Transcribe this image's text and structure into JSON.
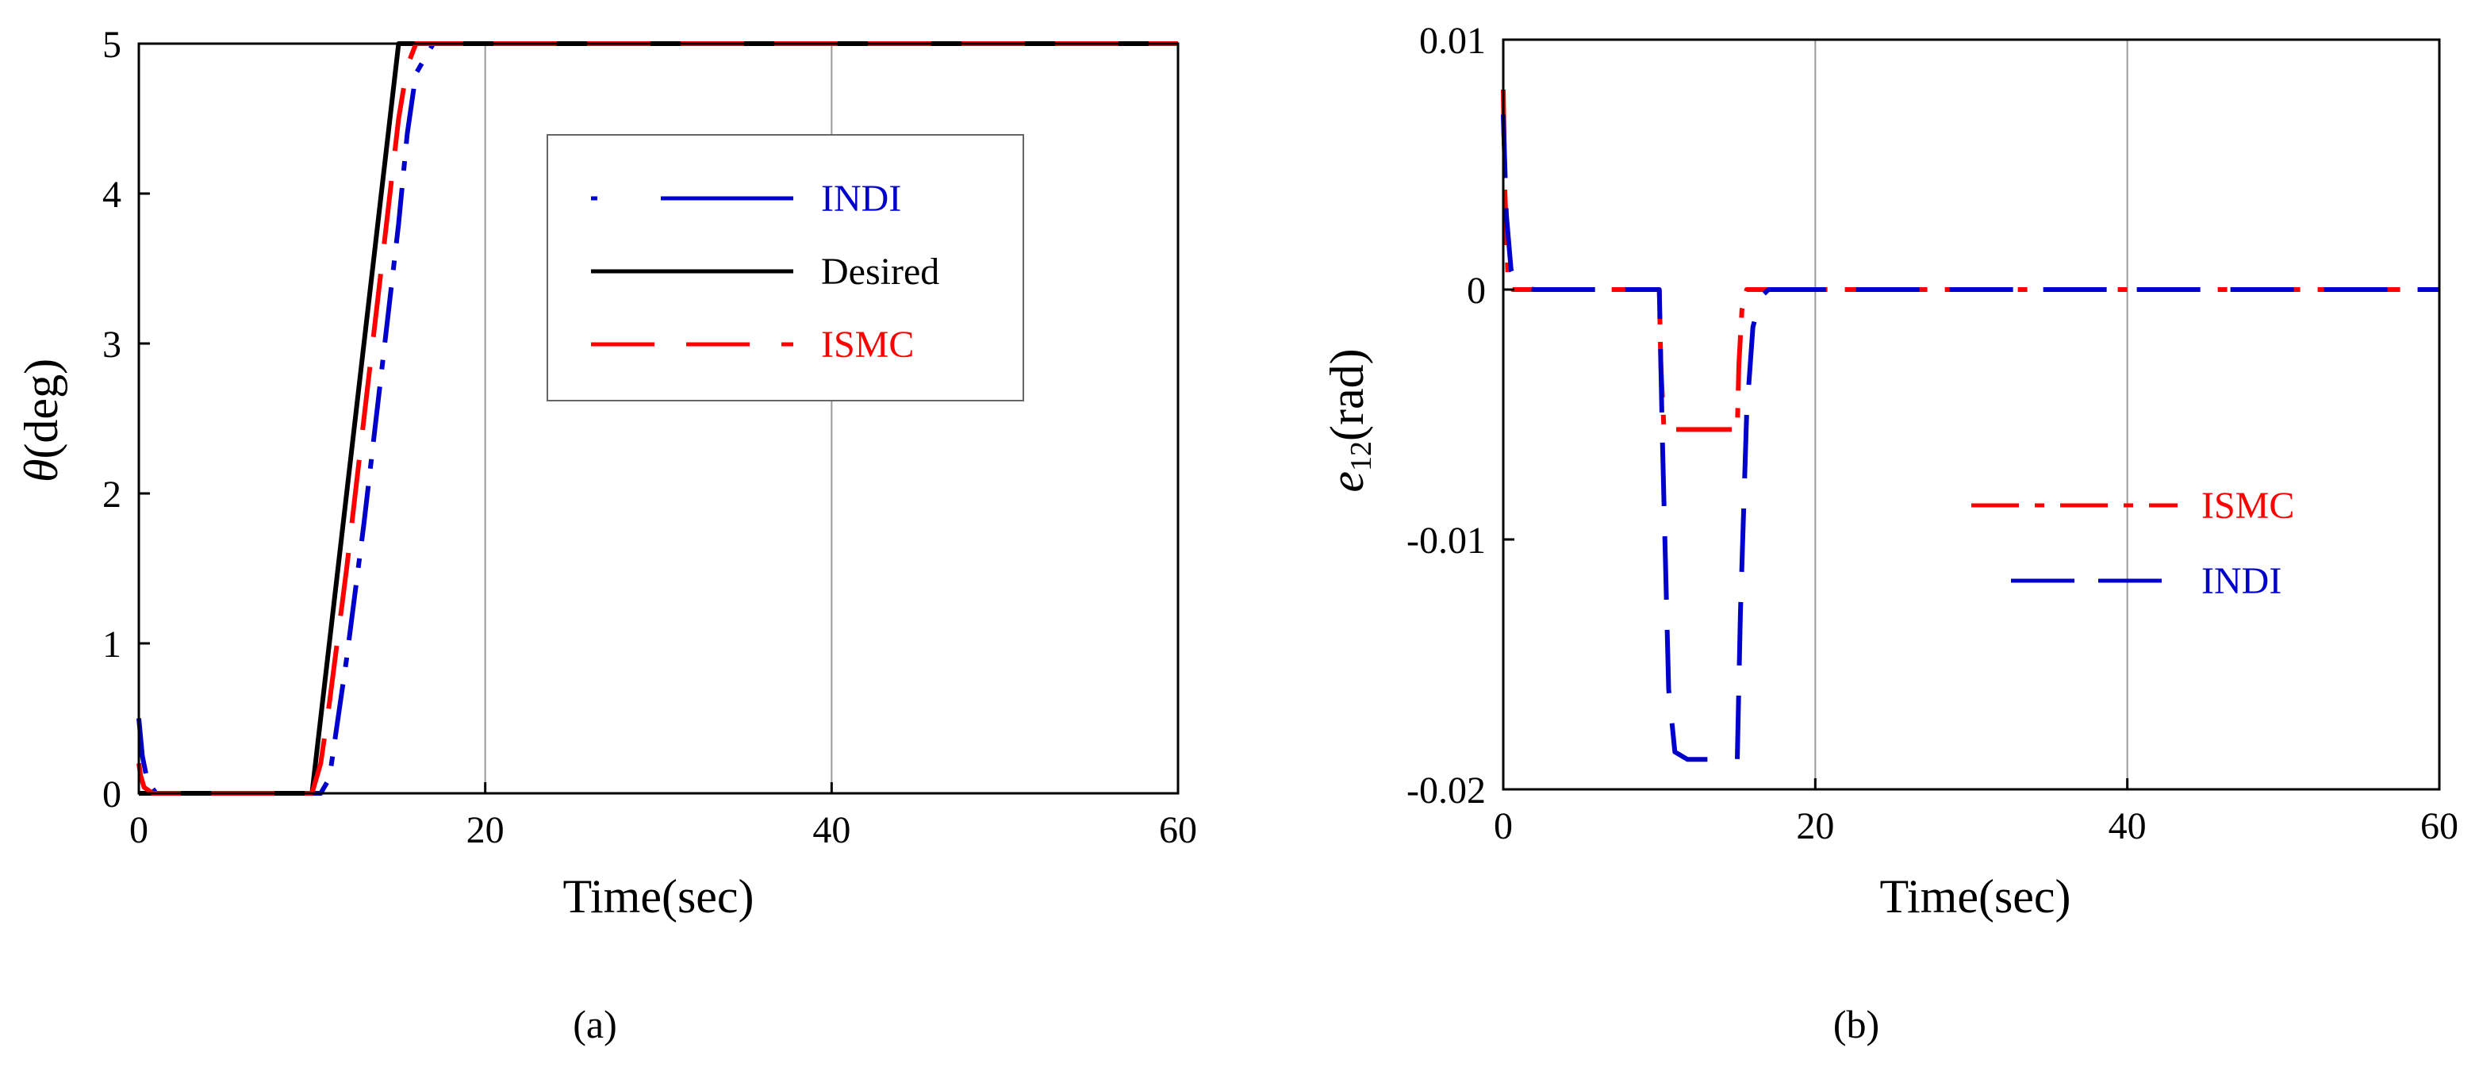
{
  "colors": {
    "indi": "#0000cc",
    "ismc": "#ff0000",
    "desired": "#000000",
    "axis": "#000000"
  },
  "chart_data": [
    {
      "type": "line",
      "caption": "(a)",
      "xlabel": "Time(sec)",
      "ylabel_symbol": "θ",
      "ylabel_rest": "(deg)",
      "xlim": [
        0,
        60
      ],
      "ylim": [
        0,
        5
      ],
      "xticks": [
        0,
        20,
        40,
        60
      ],
      "yticks": [
        0,
        1,
        2,
        3,
        4,
        5
      ],
      "xtick_labels": [
        "0",
        "20",
        "40",
        "60"
      ],
      "ytick_labels": [
        "0",
        "1",
        "2",
        "3",
        "4",
        "5"
      ],
      "grid": "vertical",
      "legend_position": "top-right",
      "series": [
        {
          "name": "INDI",
          "color": "#0000cc",
          "style": "dashdot",
          "x": [
            0,
            0.2,
            0.5,
            1,
            10,
            10.5,
            11,
            12,
            13,
            14,
            15,
            15.5,
            16,
            17,
            20,
            60
          ],
          "y": [
            0.5,
            0.25,
            0.08,
            0,
            0,
            0,
            0.1,
            0.9,
            1.8,
            2.8,
            3.8,
            4.4,
            4.8,
            5,
            5,
            5
          ]
        },
        {
          "name": "Desired",
          "color": "#000000",
          "style": "solid",
          "x": [
            0,
            10,
            15,
            60
          ],
          "y": [
            0,
            0,
            5,
            5
          ]
        },
        {
          "name": "ISMC",
          "color": "#ff0000",
          "style": "dashed",
          "x": [
            0,
            0.1,
            0.3,
            0.8,
            10,
            10.5,
            11,
            12,
            13,
            14,
            15,
            15.5,
            16,
            60
          ],
          "y": [
            0.2,
            0.12,
            0.04,
            0,
            0,
            0.2,
            0.6,
            1.5,
            2.5,
            3.5,
            4.5,
            4.85,
            5,
            5
          ]
        }
      ]
    },
    {
      "type": "line",
      "caption": "(b)",
      "xlabel": "Time(sec)",
      "ylabel_symbol": "e",
      "ylabel_sub": "12",
      "ylabel_rest": "(rad)",
      "xlim": [
        0,
        60
      ],
      "ylim": [
        -0.02,
        0.01
      ],
      "xticks": [
        0,
        20,
        40,
        60
      ],
      "yticks": [
        -0.02,
        -0.01,
        0,
        0.01
      ],
      "xtick_labels": [
        "0",
        "20",
        "40",
        "60"
      ],
      "ytick_labels": [
        "-0.02",
        "-0.01",
        "0",
        "0.01"
      ],
      "grid": "vertical",
      "legend_position": "center-right",
      "series": [
        {
          "name": "ISMC",
          "color": "#ff0000",
          "style": "dashdot",
          "x": [
            0,
            0.1,
            0.3,
            0.6,
            10,
            10.1,
            10.3,
            15,
            15.1,
            15.3,
            15.6,
            60
          ],
          "y": [
            0.008,
            0.004,
            0.0005,
            0,
            0,
            -0.003,
            -0.0056,
            -0.0056,
            -0.003,
            -0.0008,
            0,
            0
          ]
        },
        {
          "name": "INDI",
          "color": "#0000cc",
          "style": "dashed",
          "x": [
            0,
            0.2,
            0.5,
            1,
            2,
            10,
            10.2,
            10.6,
            11,
            11.8,
            15,
            15.2,
            15.6,
            16,
            16.5,
            17,
            18,
            60
          ],
          "y": [
            0.007,
            0.003,
            0.0008,
            0.0001,
            0,
            0,
            -0.006,
            -0.016,
            -0.0185,
            -0.0188,
            -0.0188,
            -0.013,
            -0.005,
            -0.0015,
            -0.0003,
            0,
            0,
            0
          ]
        }
      ]
    }
  ]
}
